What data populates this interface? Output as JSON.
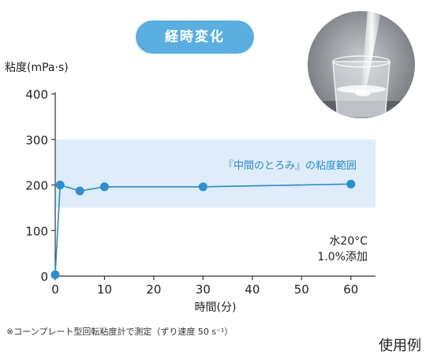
{
  "header": {
    "title": "経時変化"
  },
  "colors": {
    "band": "#deedf9",
    "line": "#2c8ac9",
    "marker": "#2e8fd0",
    "band_text": "#2c8ac9",
    "pill": "#5aaee0"
  },
  "chart_data": {
    "type": "line",
    "title": "経時変化",
    "ylabel": "粘度(mPa·s)",
    "xlabel": "時間(分)",
    "xlim": [
      0,
      65
    ],
    "ylim": [
      0,
      400
    ],
    "xticks": [
      0,
      10,
      20,
      30,
      40,
      50,
      60
    ],
    "yticks": [
      0,
      100,
      200,
      300,
      400
    ],
    "grid": false,
    "series": [
      {
        "x": [
          0,
          1,
          5,
          10,
          30,
          60
        ],
        "y": [
          3,
          200,
          187,
          196,
          196,
          202
        ]
      }
    ],
    "band": {
      "range": [
        150,
        300
      ],
      "label": "『中間のとろみ』の粘度範囲"
    },
    "annotation": {
      "lines": [
        "水20°C",
        "1.0%添加"
      ]
    }
  },
  "footnote": "※コーンプレート型回転粘度計で測定（ずり速度 50 s⁻¹）",
  "usage_label": "使用例"
}
